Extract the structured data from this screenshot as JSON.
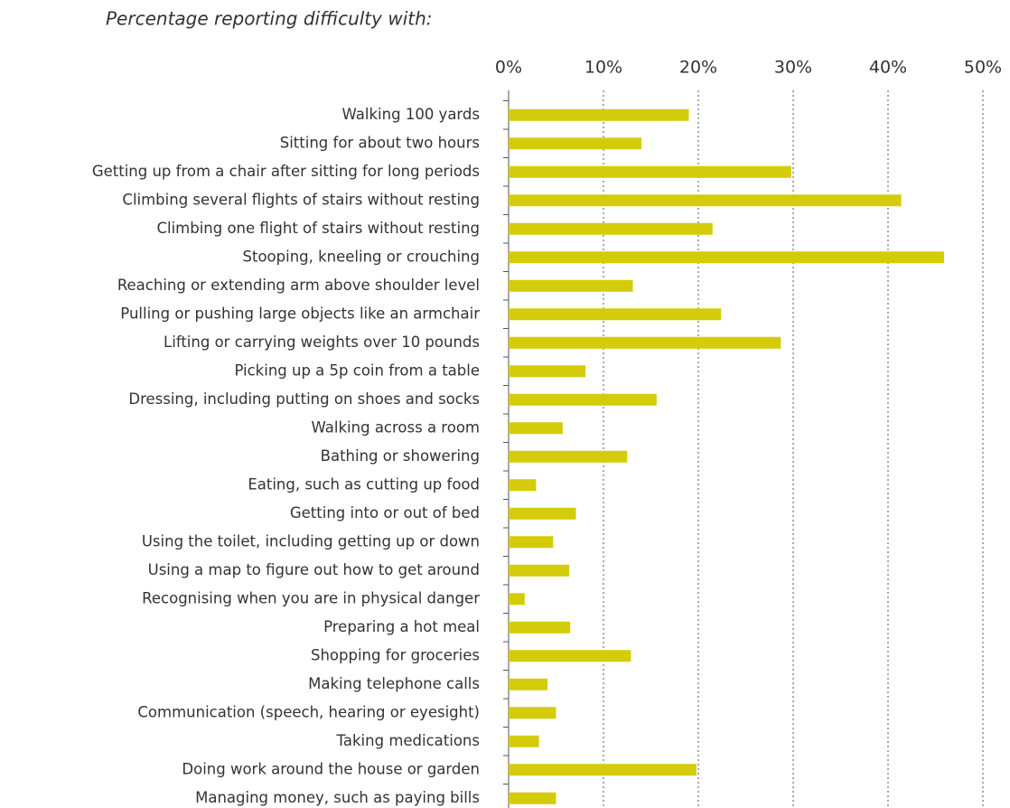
{
  "chart_data": {
    "type": "hbar",
    "title": "Percentage reporting difficulty with:",
    "categories": [
      "Walking 100 yards",
      "Sitting for about two hours",
      "Getting up from a chair after sitting for long periods",
      "Climbing several flights of stairs without resting",
      "Climbing one flight of stairs without resting",
      "Stooping, kneeling or crouching",
      "Reaching or extending arm above shoulder level",
      "Pulling or pushing large objects like an armchair",
      "Lifting or carrying weights over 10 pounds",
      "Picking up a 5p coin from a table",
      "Dressing, including putting on shoes and socks",
      "Walking across a room",
      "Bathing or showering",
      "Eating, such as cutting up food",
      "Getting into or out of bed",
      "Using the toilet, including getting up or down",
      "Using a map to figure out how to get around",
      "Recognising when you are in physical danger",
      "Preparing a hot meal",
      "Shopping for groceries",
      "Making telephone calls",
      "Communication (speech, hearing or eyesight)",
      "Taking medications",
      "Doing work around the house or garden",
      "Managing money, such as paying bills"
    ],
    "values": [
      19.0,
      14.0,
      29.8,
      41.4,
      21.5,
      45.9,
      13.1,
      22.4,
      28.7,
      8.1,
      15.6,
      5.7,
      12.5,
      2.9,
      7.1,
      4.7,
      6.4,
      1.7,
      6.5,
      12.9,
      4.1,
      5.0,
      3.2,
      19.8,
      5.0
    ],
    "color": "#d4cc0a",
    "xlim": [
      0,
      50
    ],
    "xticks": [
      {
        "value": 0,
        "label": "0%"
      },
      {
        "value": 10,
        "label": "10%"
      },
      {
        "value": 20,
        "label": "20%"
      },
      {
        "value": 30,
        "label": "30%"
      },
      {
        "value": 40,
        "label": "40%"
      },
      {
        "value": 50,
        "label": "50%"
      }
    ],
    "grid": true
  }
}
